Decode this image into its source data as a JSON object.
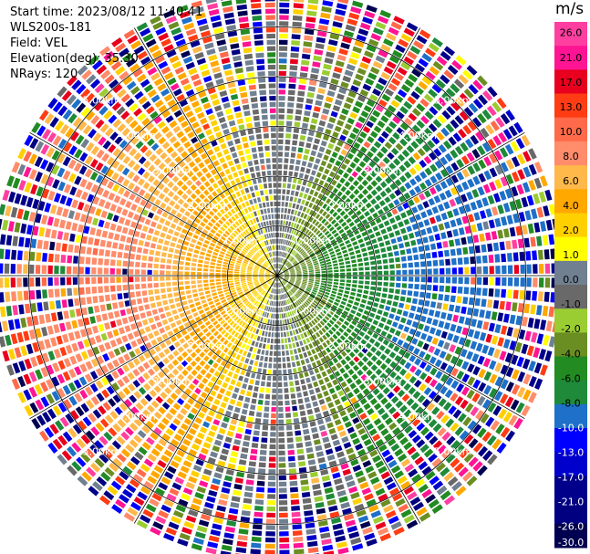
{
  "info": {
    "start_time": "Start time: 2023/08/12 11:40:41",
    "instrument": "WLS200s-181",
    "field": "Field: VEL",
    "elevation": "Elevation(deg): 35.30",
    "nrays": "NRays: 120"
  },
  "chart_data": {
    "type": "heatmap",
    "projection": "polar-ppi",
    "field": "VEL",
    "unit": "m/s",
    "nrays": 120,
    "elevation_deg": 35.3,
    "range_rings_km": [
      1,
      2,
      3,
      4,
      5
    ],
    "range_ring_labels": [
      "1.00km",
      "2.00km",
      "3.00km",
      "4.00km",
      "5.00km"
    ],
    "max_range_km": 5.75,
    "spoke_angles_deg": [
      0,
      30,
      60,
      90,
      120,
      150,
      180,
      210,
      240,
      270,
      300,
      330
    ],
    "pattern": {
      "inner_velocity_amplitude": 2.6,
      "approaching_direction_deg": 90,
      "noise_onset_km": 4.0
    },
    "colorbar": {
      "ticks": [
        "26.0",
        "21.0",
        "17.0",
        "13.0",
        "10.0",
        "8.0",
        "6.0",
        "4.0",
        "2.0",
        "1.0",
        "0.0",
        "-1.0",
        "-2.0",
        "-4.0",
        "-6.0",
        "-8.0",
        "-10.0",
        "-13.0",
        "-17.0",
        "-21.0",
        "-26.0",
        "-30.0"
      ],
      "bins": [
        {
          "min": 26,
          "max": 30,
          "color": "#ff3fa0"
        },
        {
          "min": 21,
          "max": 26,
          "color": "#ff1493"
        },
        {
          "min": 17,
          "max": 21,
          "color": "#e8001e"
        },
        {
          "min": 13,
          "max": 17,
          "color": "#ff3c14"
        },
        {
          "min": 10,
          "max": 13,
          "color": "#ff6a4a"
        },
        {
          "min": 8,
          "max": 10,
          "color": "#ff8c6a"
        },
        {
          "min": 6,
          "max": 8,
          "color": "#ffb84a"
        },
        {
          "min": 4,
          "max": 6,
          "color": "#ffa800"
        },
        {
          "min": 2,
          "max": 4,
          "color": "#ffd000"
        },
        {
          "min": 1,
          "max": 2,
          "color": "#ffff00"
        },
        {
          "min": 0,
          "max": 1,
          "color": "#708090"
        },
        {
          "min": -1,
          "max": 0,
          "color": "#696969"
        },
        {
          "min": -2,
          "max": -1,
          "color": "#9acd32"
        },
        {
          "min": -4,
          "max": -2,
          "color": "#6b8e23"
        },
        {
          "min": -6,
          "max": -4,
          "color": "#228b22"
        },
        {
          "min": -8,
          "max": -6,
          "color": "#1e8a3a"
        },
        {
          "min": -10,
          "max": -8,
          "color": "#1e70c8"
        },
        {
          "min": -13,
          "max": -10,
          "color": "#0000ff"
        },
        {
          "min": -17,
          "max": -13,
          "color": "#0000cd"
        },
        {
          "min": -21,
          "max": -17,
          "color": "#00008b"
        },
        {
          "min": -26,
          "max": -21,
          "color": "#000080"
        },
        {
          "min": -30,
          "max": -26,
          "color": "#000050"
        }
      ]
    }
  }
}
